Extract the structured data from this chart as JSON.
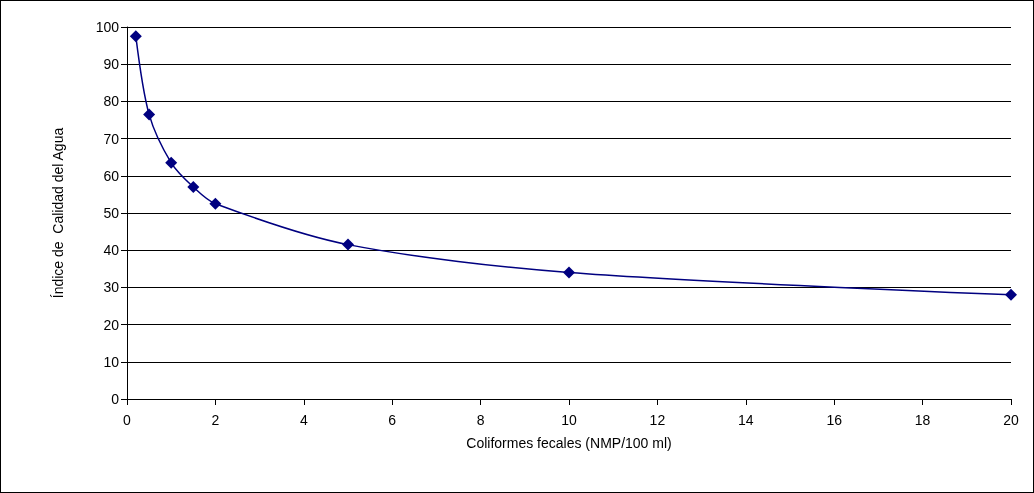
{
  "chart_data": {
    "type": "line",
    "xlabel": "Coliformes fecales (NMP/100 ml)",
    "ylabel": "Índice de  Calidad del Agua",
    "series": [
      {
        "color": "#000080",
        "x": [
          0.2,
          0.5,
          1,
          1.5,
          2,
          5,
          10,
          20
        ],
        "values": [
          97.5,
          76.5,
          63.5,
          57,
          52.5,
          41.5,
          34,
          28
        ]
      }
    ],
    "xlim": [
      0,
      20
    ],
    "xticks": [
      0,
      2,
      4,
      6,
      8,
      10,
      12,
      14,
      16,
      18,
      20
    ],
    "ylim": [
      0,
      100
    ],
    "yticks": [
      0,
      10,
      20,
      30,
      40,
      50,
      60,
      70,
      80,
      90,
      100
    ],
    "grid": "y",
    "marker": "diamond",
    "line_style": "solid"
  }
}
